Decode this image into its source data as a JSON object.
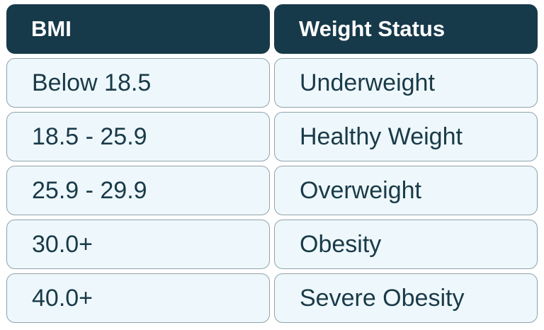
{
  "table": {
    "headers": [
      "BMI",
      "Weight Status"
    ],
    "rows": [
      [
        "Below 18.5",
        "Underweight"
      ],
      [
        "18.5 - 25.9",
        "Healthy Weight"
      ],
      [
        "25.9 - 29.9",
        "Overweight"
      ],
      [
        "30.0+",
        "Obesity"
      ],
      [
        "40.0+",
        "Severe Obesity"
      ]
    ]
  },
  "colors": {
    "header_bg": "#173a4a",
    "header_text": "#ffffff",
    "cell_bg": "#eef8fc",
    "cell_border": "#90a2ab",
    "cell_text": "#1a3a48"
  }
}
